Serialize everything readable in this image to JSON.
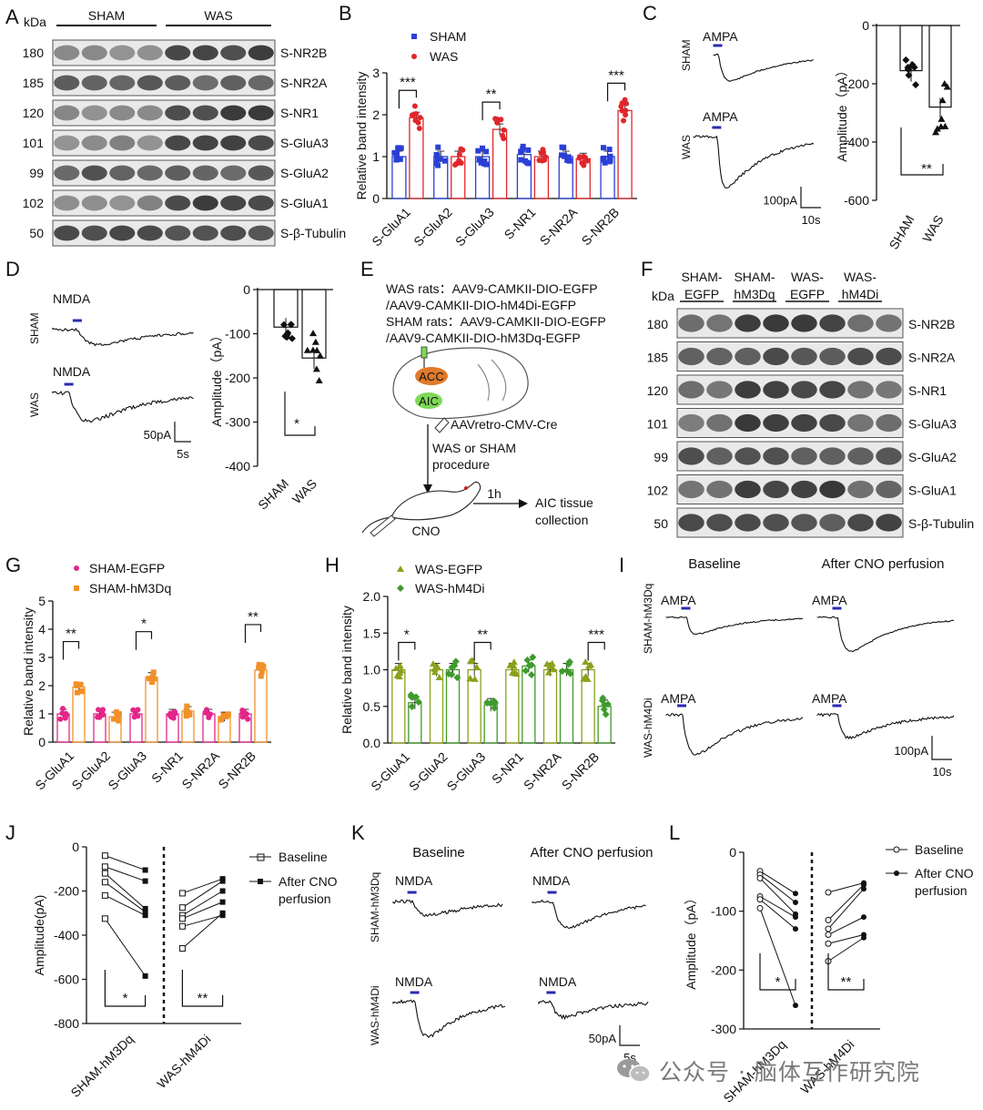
{
  "panels": {
    "A": {
      "letter": "A",
      "kda": "kDa",
      "groups": [
        "SHAM",
        "WAS"
      ],
      "mw": [
        "180",
        "185",
        "120",
        "101",
        "99",
        "102",
        "50"
      ],
      "proteins": [
        "S-NR2B",
        "S-NR2A",
        "S-NR1",
        "S-GluA3",
        "S-GluA2",
        "S-GluA1",
        "S-β-Tubulin"
      ]
    },
    "B": {
      "letter": "B"
    },
    "C": {
      "letter": "C",
      "stim": "AMPA",
      "sham": "SHAM",
      "was": "WAS",
      "scale_y": "100pA",
      "scale_x": "10s"
    },
    "D": {
      "letter": "D",
      "stim": "NMDA",
      "sham": "SHAM",
      "was": "WAS",
      "scale_y": "50pA",
      "scale_x": "5s"
    },
    "E": {
      "letter": "E",
      "lines": [
        "WAS rats：AAV9-CAMKII-DIO-EGFP",
        "/AAV9-CAMKII-DIO-hM4Di-EGFP",
        "SHAM rats：AAV9-CAMKII-DIO-EGFP",
        "/AAV9-CAMKII-DIO-hM3Dq-EGFP"
      ],
      "acc": "ACC",
      "aic": "AIC",
      "retro": "AAVretro-CMV-Cre",
      "proc1": "WAS or SHAM",
      "proc2": "procedure",
      "time": "1h",
      "coll1": "AIC tissue",
      "coll2": "collection",
      "cno": "CNO"
    },
    "F": {
      "letter": "F",
      "kda": "kDa",
      "groups": [
        [
          "SHAM-",
          "EGFP"
        ],
        [
          "SHAM-",
          "hM3Dq"
        ],
        [
          "WAS-",
          "EGFP"
        ],
        [
          "WAS-",
          "hM4Di"
        ]
      ],
      "mw": [
        "180",
        "185",
        "120",
        "101",
        "99",
        "102",
        "50"
      ],
      "proteins": [
        "S-NR2B",
        "S-NR2A",
        "S-NR1",
        "S-GluA3",
        "S-GluA2",
        "S-GluA1",
        "S-β-Tubulin"
      ]
    },
    "G": {
      "letter": "G"
    },
    "H": {
      "letter": "H"
    },
    "I": {
      "letter": "I",
      "baseline": "Baseline",
      "after": "After CNO perfusion",
      "stim": "AMPA",
      "row1": "SHAM-hM3Dq",
      "row2": "WAS-hM4Di",
      "scale_y": "100pA",
      "scale_x": "10s"
    },
    "J": {
      "letter": "J"
    },
    "K": {
      "letter": "K",
      "baseline": "Baseline",
      "after": "After CNO perfusion",
      "stim": "NMDA",
      "row1": "SHAM-hM3Dq",
      "row2": "WAS-hM4Di",
      "scale_y": "50pA",
      "scale_x": "5s"
    },
    "L": {
      "letter": "L"
    }
  },
  "watermark": "公众号 · 脑体互作研究院",
  "colors": {
    "sham": "#2a3fd6",
    "was": "#e0262b",
    "sham_egfp": "#e3268a",
    "sham_hm3dq": "#f0912a",
    "was_egfp": "#8aa11a",
    "was_hm4di": "#3f9a2d",
    "acc": "#e07a2b",
    "aic": "#7ed957"
  },
  "chart_data": [
    {
      "panel": "B",
      "type": "bar",
      "ylabel": "Relative band intensity",
      "ylim": [
        0,
        3
      ],
      "yticks": [
        0,
        1,
        2,
        3
      ],
      "categories": [
        "S-GluA1",
        "S-GluA2",
        "S-GluA3",
        "S-NR1",
        "S-NR2A",
        "S-NR2B"
      ],
      "series": [
        {
          "name": "SHAM",
          "values": [
            1.0,
            1.0,
            1.0,
            1.05,
            1.0,
            1.0
          ]
        },
        {
          "name": "WAS",
          "values": [
            1.93,
            1.0,
            1.65,
            1.0,
            0.95,
            2.1
          ]
        }
      ],
      "significance": [
        "***",
        "",
        "**",
        "",
        "",
        "***"
      ]
    },
    {
      "panel": "C",
      "type": "bar",
      "ylabel": "Amplitude（pA）",
      "ylim": [
        -600,
        0
      ],
      "yticks": [
        0,
        -200,
        -400,
        -600
      ],
      "categories": [
        "SHAM",
        "WAS"
      ],
      "values": [
        -155,
        -280
      ],
      "significance": "**"
    },
    {
      "panel": "D",
      "type": "bar",
      "ylabel": "Amplitude（pA）",
      "ylim": [
        -400,
        0
      ],
      "yticks": [
        0,
        -100,
        -200,
        -300,
        -400
      ],
      "categories": [
        "SHAM",
        "WAS"
      ],
      "values": [
        -85,
        -155
      ],
      "significance": "*"
    },
    {
      "panel": "G",
      "type": "bar",
      "ylabel": "Relative band intensity",
      "ylim": [
        0,
        5
      ],
      "yticks": [
        0,
        1,
        2,
        3,
        4,
        5
      ],
      "categories": [
        "S-GluA1",
        "S-GluA2",
        "S-GluA3",
        "S-NR1",
        "S-NR2A",
        "S-NR2B"
      ],
      "series": [
        {
          "name": "SHAM-EGFP",
          "values": [
            1.0,
            1.0,
            1.0,
            1.0,
            1.0,
            1.0
          ]
        },
        {
          "name": "SHAM-hM3Dq",
          "values": [
            1.95,
            0.9,
            2.3,
            1.1,
            0.9,
            2.55
          ]
        }
      ],
      "significance": [
        "**",
        "",
        "*",
        "",
        "",
        "**"
      ]
    },
    {
      "panel": "H",
      "type": "bar",
      "ylabel": "Relative band intensity",
      "ylim": [
        0,
        2
      ],
      "yticks": [
        "0.0",
        "0.5",
        "1.0",
        "1.5",
        "2.0"
      ],
      "categories": [
        "S-GluA1",
        "S-GluA2",
        "S-GluA3",
        "S-NR1",
        "S-NR2A",
        "S-NR2B"
      ],
      "series": [
        {
          "name": "WAS-EGFP",
          "values": [
            1.0,
            1.0,
            1.0,
            1.0,
            1.0,
            1.0
          ]
        },
        {
          "name": "WAS-hM4Di",
          "values": [
            0.55,
            1.0,
            0.52,
            1.05,
            1.0,
            0.5
          ]
        }
      ],
      "significance": [
        "*",
        "",
        "**",
        "",
        "",
        "***"
      ]
    },
    {
      "panel": "J",
      "type": "scatter",
      "ylabel": "Amplitude(pA)",
      "ylim": [
        -800,
        0
      ],
      "yticks": [
        0,
        -200,
        -400,
        -600,
        -800
      ],
      "categories": [
        "SHAM-hM3Dq",
        "WAS-hM4Di"
      ],
      "legend": [
        "Baseline",
        "After CNO perfusion"
      ],
      "pairs": [
        [
          [
            -40,
            -105
          ],
          [
            -90,
            -155
          ],
          [
            -120,
            -280
          ],
          [
            -160,
            -295
          ],
          [
            -220,
            -310
          ],
          [
            -325,
            -585
          ]
        ],
        [
          [
            -210,
            -145
          ],
          [
            -275,
            -155
          ],
          [
            -310,
            -200
          ],
          [
            -325,
            -250
          ],
          [
            -360,
            -310
          ],
          [
            -460,
            -300
          ]
        ]
      ],
      "significance": [
        "*",
        "**"
      ]
    },
    {
      "panel": "L",
      "type": "scatter",
      "ylabel": "Amplitude（pA）",
      "ylim": [
        -300,
        0
      ],
      "yticks": [
        0,
        -100,
        -200,
        -300
      ],
      "categories": [
        "SHAM-hM3Dq",
        "WAS-hM4Di"
      ],
      "legend": [
        "Baseline",
        "After CNO perfusion"
      ],
      "pairs": [
        [
          [
            -32,
            -70
          ],
          [
            -38,
            -85
          ],
          [
            -44,
            -105
          ],
          [
            -75,
            -110
          ],
          [
            -80,
            -130
          ],
          [
            -95,
            -260
          ]
        ],
        [
          [
            -68,
            -52
          ],
          [
            -115,
            -55
          ],
          [
            -130,
            -62
          ],
          [
            -140,
            -110
          ],
          [
            -155,
            -140
          ],
          [
            -185,
            -145
          ]
        ]
      ],
      "significance": [
        "*",
        "**"
      ]
    }
  ]
}
